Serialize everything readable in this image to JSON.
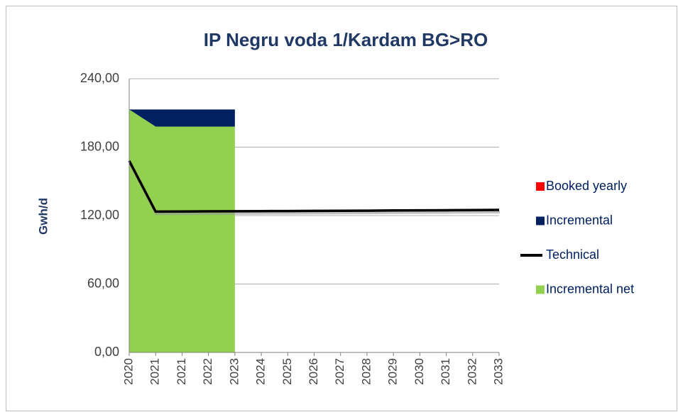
{
  "chart_data": {
    "type": "area",
    "title": "IP Negru voda 1/Kardam BG>RO",
    "y_label": "Gwh/d",
    "categories": [
      "2020",
      "2021",
      "2021",
      "2022",
      "2023",
      "2024",
      "2025",
      "2026",
      "2027",
      "2028",
      "2029",
      "2030",
      "2031",
      "2032",
      "2033"
    ],
    "series": [
      {
        "name": "Incremental net",
        "color": "#92d050",
        "kind": "area",
        "values": [
          213,
          198,
          198,
          198,
          198,
          null,
          null,
          null,
          null,
          null,
          null,
          null,
          null,
          null,
          null
        ]
      },
      {
        "name": "Incremental",
        "color": "#002060",
        "kind": "area",
        "values": [
          0,
          15,
          15,
          15,
          15,
          null,
          null,
          null,
          null,
          null,
          null,
          null,
          null,
          null,
          null
        ]
      },
      {
        "name": "Booked yearly",
        "color": "#ff0000",
        "kind": "area",
        "values": [
          0,
          0,
          0,
          0,
          0,
          null,
          null,
          null,
          null,
          null,
          null,
          null,
          null,
          null,
          null
        ]
      },
      {
        "name": "Technical",
        "color": "#000000",
        "kind": "line",
        "values": [
          168,
          123.5,
          123.6,
          123.7,
          123.8,
          123.9,
          124,
          124.1,
          124.2,
          124.3,
          124.5,
          124.6,
          124.7,
          124.8,
          125
        ]
      }
    ],
    "legend_order": [
      2,
      1,
      3,
      0
    ],
    "ylim": [
      0,
      240
    ],
    "yticks": [
      {
        "value": 0,
        "label": "0,00"
      },
      {
        "value": 60,
        "label": "60,00"
      },
      {
        "value": 120,
        "label": "120,00"
      },
      {
        "value": 180,
        "label": "180,00"
      },
      {
        "value": 240,
        "label": "240,00"
      }
    ],
    "grid": true
  }
}
